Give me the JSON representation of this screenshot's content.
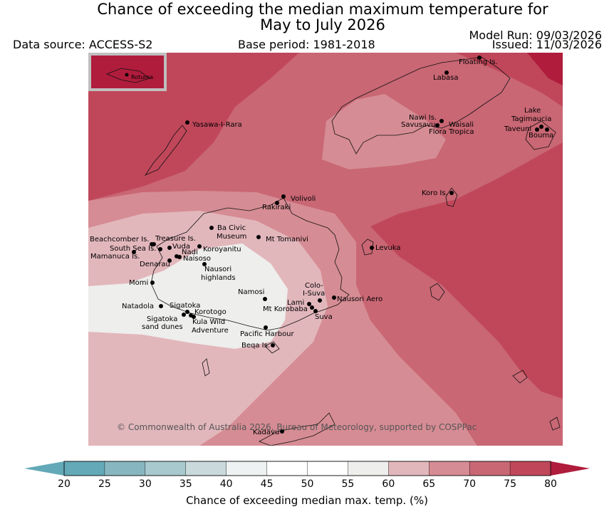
{
  "title_line1": "Chance of exceeding the median maximum temperature for",
  "title_line2": "May to July 2026",
  "data_source": "Data source: ACCESS-S2",
  "base_period": "Base period: 1981-2018",
  "model_run": "Model Run: 09/03/2026",
  "issued": "Issued: 11/03/2026",
  "copyright": "© Commonwealth of Australia 2026, Bureau of Meteorology, supported by COSPPac",
  "inset_label": "Rotuma",
  "colorbar": {
    "label": "Chance of exceeding median max. temp. (%)",
    "ticks": [
      "20",
      "25",
      "30",
      "35",
      "40",
      "45",
      "50",
      "55",
      "60",
      "65",
      "70",
      "75",
      "80"
    ],
    "colors": [
      "#63a9b7",
      "#88b6c0",
      "#a8c9ce",
      "#c9d9dc",
      "#eef2f3",
      "#ffffff",
      "#ffffff",
      "#eeeeec",
      "#e2b7bc",
      "#d68c94",
      "#c96774",
      "#c0475a",
      "#b01c3c"
    ]
  },
  "places": [
    {
      "name": "Floating Is."
    },
    {
      "name": "Labasa"
    },
    {
      "name": "Nawi Is."
    },
    {
      "name": "Savusavu"
    },
    {
      "name": "Waisali"
    },
    {
      "name": "Flora Tropica"
    },
    {
      "name": "Lake"
    },
    {
      "name": "Tagimaucia"
    },
    {
      "name": "Taveuni"
    },
    {
      "name": "Bouma"
    },
    {
      "name": "Yasawa-I-Rara"
    },
    {
      "name": "Volivoli"
    },
    {
      "name": "Rakiraki"
    },
    {
      "name": "Koro Is."
    },
    {
      "name": "Ba Civic"
    },
    {
      "name": "Museum"
    },
    {
      "name": "Mt Tomanivi"
    },
    {
      "name": "Beachcomber Is."
    },
    {
      "name": "Treasure Is."
    },
    {
      "name": "South Sea Is."
    },
    {
      "name": "Vuda"
    },
    {
      "name": "Koroyanitu"
    },
    {
      "name": "Mamanuca Is."
    },
    {
      "name": "Nadi"
    },
    {
      "name": "Naisoso"
    },
    {
      "name": "Denarau"
    },
    {
      "name": "Levuka"
    },
    {
      "name": "Nausori"
    },
    {
      "name": "highlands"
    },
    {
      "name": "Momi"
    },
    {
      "name": "Namosi"
    },
    {
      "name": "Colo-"
    },
    {
      "name": "I-Suva"
    },
    {
      "name": "Natadola"
    },
    {
      "name": "Sigatoka"
    },
    {
      "name": "Lami"
    },
    {
      "name": "Nausori Aero"
    },
    {
      "name": "Korotogo"
    },
    {
      "name": "Mt Korobaba"
    },
    {
      "name": "Sigatoka"
    },
    {
      "name": "Suva"
    },
    {
      "name": "sand dunes"
    },
    {
      "name": "Kula Wild"
    },
    {
      "name": "Adventure"
    },
    {
      "name": "Pacific Harbour"
    },
    {
      "name": "Beqa Is."
    },
    {
      "name": "Kadavu"
    }
  ]
}
